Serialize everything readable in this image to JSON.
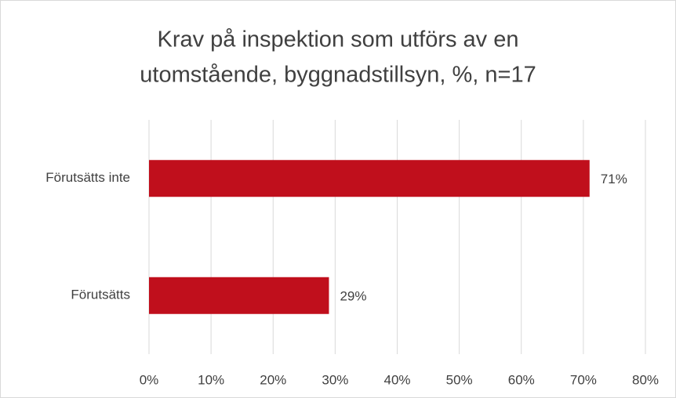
{
  "chart_data": {
    "type": "barh",
    "title": [
      "Krav på inspektion som utförs av en",
      "utomstående, byggnadstillsyn, %, n=17"
    ],
    "categories": [
      "Förutsätts inte",
      "Förutsätts"
    ],
    "values": [
      71,
      29
    ],
    "value_labels": [
      "71%",
      "29%"
    ],
    "color": "#c00f1c",
    "xlim": [
      0,
      80
    ],
    "xticks": [
      {
        "value": 0,
        "label": "0%"
      },
      {
        "value": 10,
        "label": "10%"
      },
      {
        "value": 20,
        "label": "20%"
      },
      {
        "value": 30,
        "label": "30%"
      },
      {
        "value": 40,
        "label": "40%"
      },
      {
        "value": 50,
        "label": "50%"
      },
      {
        "value": 60,
        "label": "60%"
      },
      {
        "value": 70,
        "label": "70%"
      },
      {
        "value": 80,
        "label": "80%"
      }
    ],
    "grid": true
  }
}
